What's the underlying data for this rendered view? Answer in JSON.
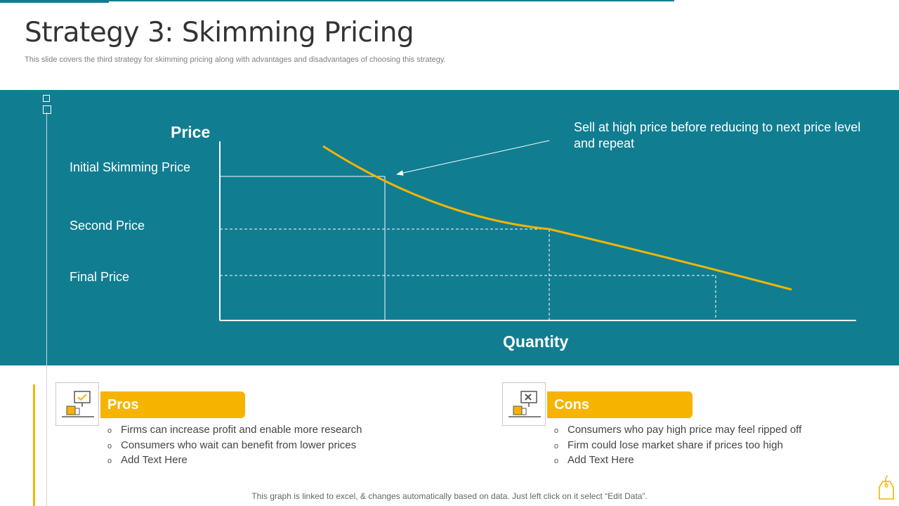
{
  "header": {
    "title": "Strategy 3: Skimming Pricing",
    "subtitle": "This slide covers the third strategy for skimming pricing along with advantages and disadvantages of choosing this strategy."
  },
  "chart": {
    "y_axis_title": "Price",
    "x_axis_title": "Quantity",
    "price_levels": [
      "Initial Skimming Price",
      "Second Price",
      "Final Price"
    ],
    "annotation": "Sell at high price before reducing to next price level and repeat",
    "colors": {
      "background": "#117d91",
      "curve": "#f4b400",
      "lines": "#ffffff"
    }
  },
  "pros": {
    "title": "Pros",
    "icon": "thumbs-up-check-icon",
    "items": [
      "Firms can increase profit and enable more research",
      "Consumers who wait can benefit from lower prices",
      "Add Text Here"
    ]
  },
  "cons": {
    "title": "Cons",
    "icon": "thumbs-down-cross-icon",
    "items": [
      "Consumers who pay high price may feel ripped off",
      "Firm could lose market share if prices too high",
      "Add Text Here"
    ]
  },
  "bullet": "o",
  "footer": "This graph is linked to excel, & changes automatically based on data. Just left click on it select “Edit Data”.",
  "colors": {
    "accent": "#f6b400",
    "teal": "#117d91",
    "title": "#333333"
  }
}
